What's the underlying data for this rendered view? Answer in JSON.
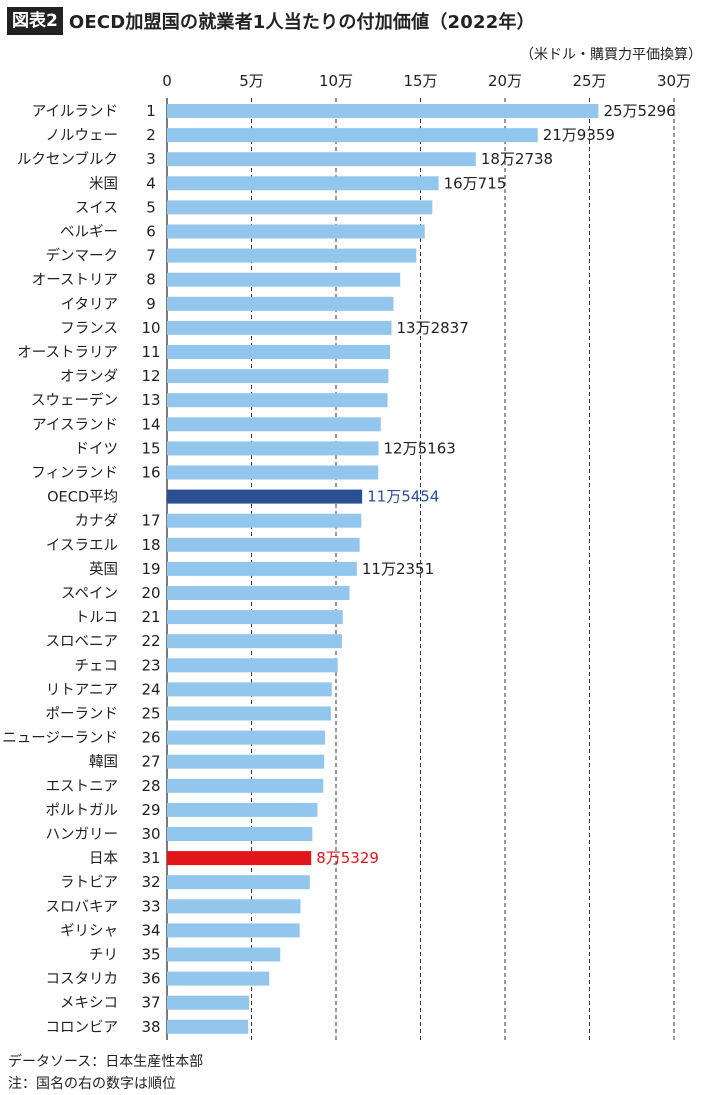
{
  "header": {
    "badge": "図表2",
    "title": "OECD加盟国の就業者1人当たりの付加価値（2022年）"
  },
  "unit_label": "（米ドル・購買力平価換算）",
  "footnotes": {
    "source": "データソース：日本生産性本部",
    "note": "注：国名の右の数字は順位"
  },
  "colors": {
    "bar": "#93c6ec",
    "oecd": "#2a4f93",
    "japan": "#e0161a",
    "grid": "#333333"
  },
  "chart_data": {
    "type": "bar",
    "orientation": "horizontal",
    "title": "OECD加盟国の就業者1人当たりの付加価値（2022年）",
    "xlim": [
      0,
      300000
    ],
    "x_ticks": [
      {
        "value": 0,
        "label": "0"
      },
      {
        "value": 50000,
        "label": "5万"
      },
      {
        "value": 100000,
        "label": "10万"
      },
      {
        "value": 150000,
        "label": "15万"
      },
      {
        "value": 200000,
        "label": "20万"
      },
      {
        "value": 250000,
        "label": "25万"
      },
      {
        "value": 300000,
        "label": "30万"
      }
    ],
    "grid": "vertical dashed",
    "rows": [
      {
        "name": "アイルランド",
        "rank": "1",
        "value": 255296,
        "label": "25万5296"
      },
      {
        "name": "ノルウェー",
        "rank": "2",
        "value": 219359,
        "label": "21万9359"
      },
      {
        "name": "ルクセンブルク",
        "rank": "3",
        "value": 182738,
        "label": "18万2738"
      },
      {
        "name": "米国",
        "rank": "4",
        "value": 160715,
        "label": "16万715"
      },
      {
        "name": "スイス",
        "rank": "5",
        "value": 157000,
        "label": ""
      },
      {
        "name": "ベルギー",
        "rank": "6",
        "value": 152500,
        "label": ""
      },
      {
        "name": "デンマーク",
        "rank": "7",
        "value": 147500,
        "label": ""
      },
      {
        "name": "オーストリア",
        "rank": "8",
        "value": 138000,
        "label": ""
      },
      {
        "name": "イタリア",
        "rank": "9",
        "value": 134000,
        "label": ""
      },
      {
        "name": "フランス",
        "rank": "10",
        "value": 132837,
        "label": "13万2837"
      },
      {
        "name": "オーストラリア",
        "rank": "11",
        "value": 132000,
        "label": ""
      },
      {
        "name": "オランダ",
        "rank": "12",
        "value": 131000,
        "label": ""
      },
      {
        "name": "スウェーデン",
        "rank": "13",
        "value": 130500,
        "label": ""
      },
      {
        "name": "アイスランド",
        "rank": "14",
        "value": 126500,
        "label": ""
      },
      {
        "name": "ドイツ",
        "rank": "15",
        "value": 125163,
        "label": "12万5163"
      },
      {
        "name": "フィンランド",
        "rank": "16",
        "value": 125000,
        "label": ""
      },
      {
        "name": "OECD平均",
        "rank": "",
        "value": 115454,
        "label": "11万5454",
        "highlight": "oecd"
      },
      {
        "name": "カナダ",
        "rank": "17",
        "value": 115000,
        "label": ""
      },
      {
        "name": "イスラエル",
        "rank": "18",
        "value": 114000,
        "label": ""
      },
      {
        "name": "英国",
        "rank": "19",
        "value": 112351,
        "label": "11万2351"
      },
      {
        "name": "スペイン",
        "rank": "20",
        "value": 108000,
        "label": ""
      },
      {
        "name": "トルコ",
        "rank": "21",
        "value": 104000,
        "label": ""
      },
      {
        "name": "スロベニア",
        "rank": "22",
        "value": 103500,
        "label": ""
      },
      {
        "name": "チェコ",
        "rank": "23",
        "value": 101000,
        "label": ""
      },
      {
        "name": "リトアニア",
        "rank": "24",
        "value": 97500,
        "label": ""
      },
      {
        "name": "ポーランド",
        "rank": "25",
        "value": 97000,
        "label": ""
      },
      {
        "name": "ニュージーランド",
        "rank": "26",
        "value": 93500,
        "label": ""
      },
      {
        "name": "韓国",
        "rank": "27",
        "value": 93000,
        "label": ""
      },
      {
        "name": "エストニア",
        "rank": "28",
        "value": 92500,
        "label": ""
      },
      {
        "name": "ポルトガル",
        "rank": "29",
        "value": 89000,
        "label": ""
      },
      {
        "name": "ハンガリー",
        "rank": "30",
        "value": 86000,
        "label": ""
      },
      {
        "name": "日本",
        "rank": "31",
        "value": 85329,
        "label": "8万5329",
        "highlight": "japan"
      },
      {
        "name": "ラトビア",
        "rank": "32",
        "value": 84500,
        "label": ""
      },
      {
        "name": "スロバキア",
        "rank": "33",
        "value": 79000,
        "label": ""
      },
      {
        "name": "ギリシャ",
        "rank": "34",
        "value": 78500,
        "label": ""
      },
      {
        "name": "チリ",
        "rank": "35",
        "value": 67000,
        "label": ""
      },
      {
        "name": "コスタリカ",
        "rank": "36",
        "value": 60500,
        "label": ""
      },
      {
        "name": "メキシコ",
        "rank": "37",
        "value": 48500,
        "label": ""
      },
      {
        "name": "コロンビア",
        "rank": "38",
        "value": 48000,
        "label": ""
      }
    ]
  }
}
